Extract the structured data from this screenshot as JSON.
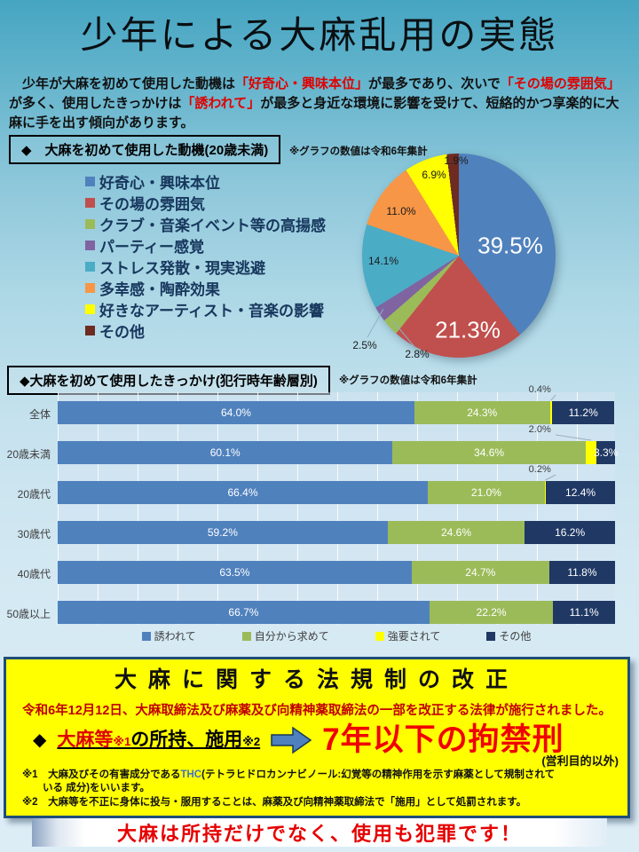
{
  "page": {
    "title": "少年による大麻乱用の実態",
    "intro": {
      "segments": [
        {
          "text": "　少年が大麻を初めて使用した動機は",
          "red": false
        },
        {
          "text": "「好奇心・興味本位」",
          "red": true
        },
        {
          "text": "が最多であり、次いで",
          "red": false
        },
        {
          "text": "「その場の雰囲気」",
          "red": true
        },
        {
          "text": "が多く、使用したきっかけは",
          "red": false
        },
        {
          "text": "「誘われて」",
          "red": true
        },
        {
          "text": "が最多と身近な環境に影響を受けて、短絡的かつ享楽的に大麻に手を出す傾向があります。",
          "red": false
        }
      ]
    }
  },
  "motive_section": {
    "header": "◆　大麻を初めて使用した動機(20歳未満)",
    "note": "※グラフの数値は令和6年集計"
  },
  "trigger_section": {
    "header": "◆大麻を初めて使用したきっかけ(犯行時年齢層別)",
    "note": "※グラフの数値は令和6年集計"
  },
  "law_box": {
    "title": "大麻に関する法規制の改正",
    "announcement": "令和6年12月12日、大麻取締法及び麻薬及び向精神薬取締法の一部を改正する法律が施行されました。",
    "subject_red": "大麻等",
    "subject_ref1": "※1",
    "subject_black": "の所持、施用",
    "subject_ref2": "※2",
    "penalty": "7年以下の拘禁刑",
    "penalty_note": "(営利目的以外)",
    "footnote1_pre": "※1　大麻及びその有害成分である",
    "footnote1_thc": "THC",
    "footnote1_post": "(テトラヒドロカンナビノール:幻覚等の精神作用を示す麻薬として規制されて",
    "footnote1_cont": "　　いる 成分)をいいます。",
    "footnote2": "※2　大麻等を不正に身体に投与・服用することは、麻薬及び向精神薬取締法で「施用」として処罰されます。"
  },
  "bottom_banner": {
    "text": "大麻は所持だけでなく、使用も犯罪です！"
  },
  "chart_data": [
    {
      "type": "pie",
      "title": "大麻を初めて使用した動機(20歳未満)",
      "note": "※グラフの数値は令和6年集計",
      "labels": [
        "好奇心・興味本位",
        "その場の雰囲気",
        "クラブ・音楽イベント等の高揚感",
        "パーティー感覚",
        "ストレス発散・現実逃避",
        "多幸感・陶酔効果",
        "好きなアーティスト・音楽の影響",
        "その他"
      ],
      "values": [
        39.5,
        21.3,
        2.8,
        2.5,
        14.1,
        11.0,
        6.9,
        1.9
      ],
      "colors": [
        "#4F81BD",
        "#C0504D",
        "#9BBB59",
        "#8064A2",
        "#4BACC6",
        "#F79646",
        "#FFFF00",
        "#6D2B22"
      ],
      "start_angle": 0,
      "direction": "clockwise",
      "legend_position": "left",
      "value_labels": [
        {
          "i": 0,
          "x": 187,
          "y": 107,
          "big": true
        },
        {
          "i": 1,
          "x": 139,
          "y": 202,
          "big": true
        },
        {
          "i": 4,
          "x": 44,
          "y": 124,
          "big": false
        },
        {
          "i": 5,
          "x": 64,
          "y": 68,
          "big": false
        },
        {
          "i": 6,
          "x": 101,
          "y": 27,
          "big": false
        },
        {
          "i": 7,
          "x": 126,
          "y": 11,
          "big": false
        },
        {
          "i": 3,
          "x": 23,
          "y": 219,
          "big": false
        },
        {
          "i": 2,
          "x": 82,
          "y": 229,
          "big": false
        }
      ]
    },
    {
      "type": "bar",
      "subtype": "stacked-horizontal-100",
      "title": "大麻を初めて使用したきっかけ(犯行時年齢層別)",
      "note": "※グラフの数値は令和6年集計",
      "categories": [
        "全体",
        "20歳未満",
        "20歳代",
        "30歳代",
        "40歳代",
        "50歳以上"
      ],
      "series": [
        {
          "name": "誘われて",
          "color": "#4F81BD",
          "values": [
            64.0,
            60.1,
            66.4,
            59.2,
            63.5,
            66.7
          ]
        },
        {
          "name": "自分から求めて",
          "color": "#9BBB59",
          "values": [
            24.3,
            34.6,
            21.0,
            24.6,
            24.7,
            22.2
          ]
        },
        {
          "name": "強要されて",
          "color": "#FFFF00",
          "values": [
            0.4,
            2.0,
            0.2,
            0,
            0,
            0
          ]
        },
        {
          "name": "その他",
          "color": "#1F3864",
          "values": [
            11.2,
            3.3,
            12.4,
            16.2,
            11.8,
            11.1
          ]
        }
      ],
      "xlim": [
        0,
        100
      ],
      "grid": true,
      "legend_position": "bottom"
    }
  ]
}
